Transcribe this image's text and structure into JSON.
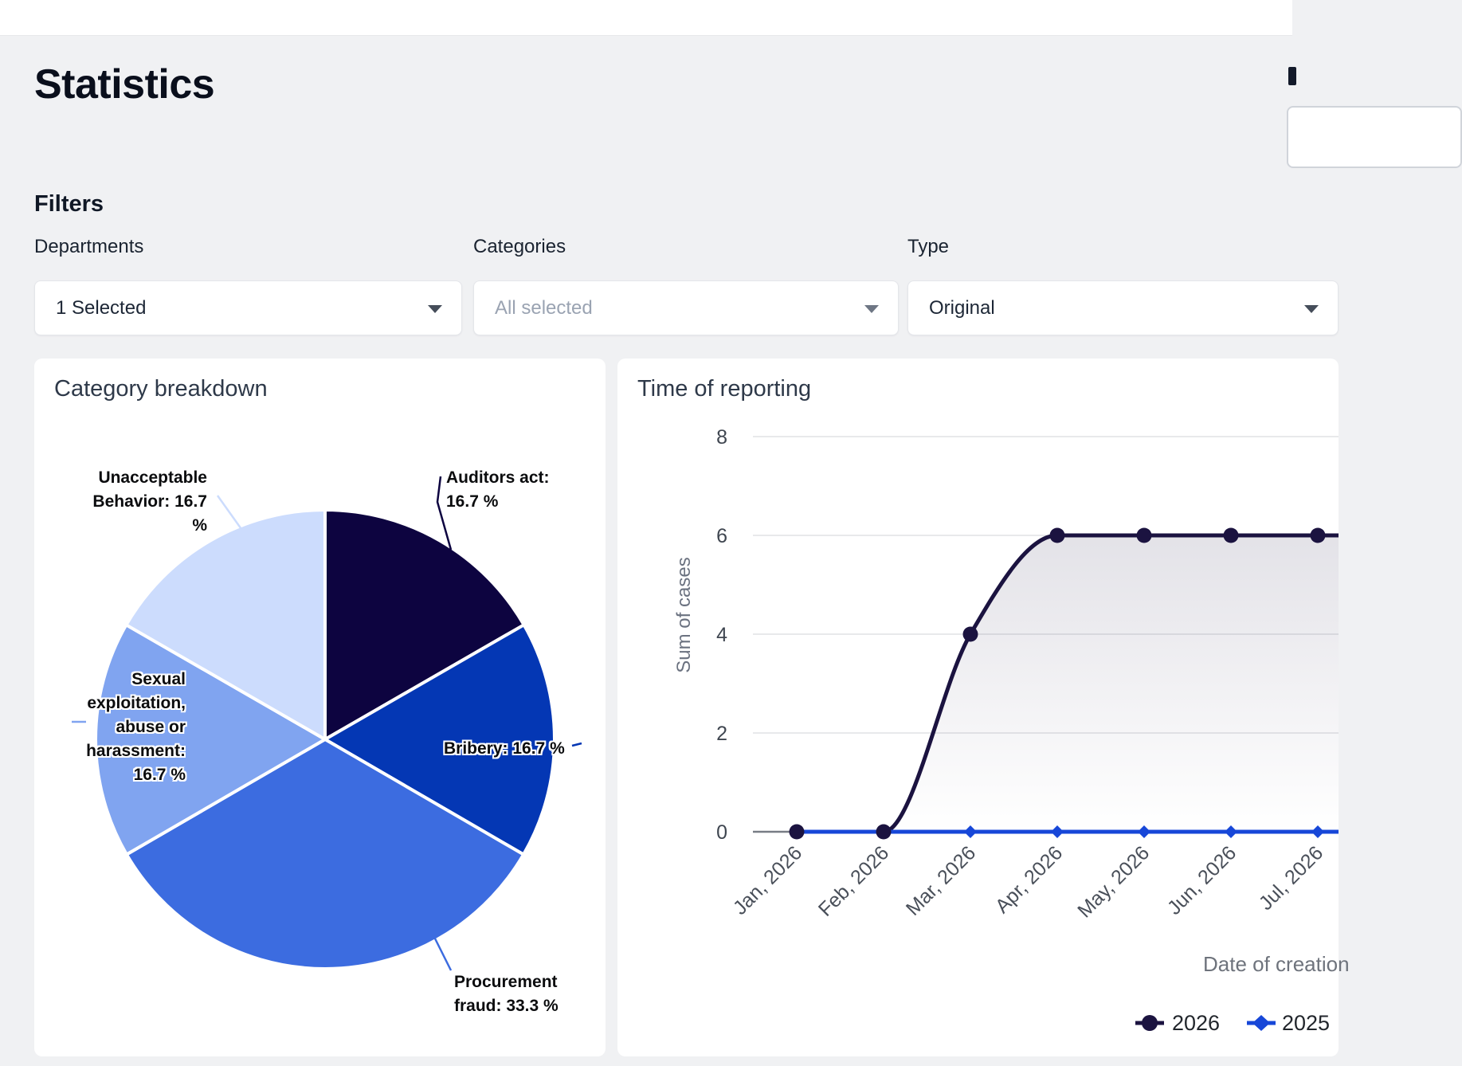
{
  "header": {
    "title": "Statistics"
  },
  "filters": {
    "heading": "Filters",
    "departments": {
      "label": "Departments",
      "value": "1 Selected"
    },
    "categories": {
      "label": "Categories",
      "value": "All selected"
    },
    "type": {
      "label": "Type",
      "value": "Original"
    }
  },
  "chart_data": [
    {
      "type": "pie",
      "title": "Category breakdown",
      "slices": [
        {
          "label": "Auditors act",
          "value": 16.7,
          "color": "#0D0440",
          "lines": [
            "Auditors act:",
            "16.7 %"
          ]
        },
        {
          "label": "Bribery",
          "value": 16.7,
          "color": "#0437B4",
          "lines": [
            "Bribery: 16.7 %"
          ]
        },
        {
          "label": "Procurement fraud",
          "value": 33.3,
          "color": "#3C6CE0",
          "lines": [
            "Procurement",
            "fraud: 33.3 %"
          ]
        },
        {
          "label": "Sexual exploitation, abuse or harassment",
          "value": 16.7,
          "color": "#80A4F0",
          "lines": [
            "Sexual",
            "exploitation,",
            "abuse or",
            "harassment:",
            "16.7 %"
          ]
        },
        {
          "label": "Unacceptable Behavior",
          "value": 16.7,
          "color": "#CCDCFD",
          "lines": [
            "Unacceptable",
            "Behavior: 16.7",
            "%"
          ]
        }
      ]
    },
    {
      "type": "line",
      "title": "Time of reporting",
      "x": [
        "Jan, 2026",
        "Feb, 2026",
        "Mar, 2026",
        "Apr, 2026",
        "May, 2026",
        "Jun, 2026",
        "Jul, 2026"
      ],
      "series": [
        {
          "name": "2026",
          "marker": "circle",
          "color": "#1B1340",
          "values": [
            0,
            0,
            4,
            6,
            6,
            6,
            6
          ]
        },
        {
          "name": "2025",
          "marker": "diamond",
          "color": "#1747D8",
          "values": [
            0,
            0,
            0,
            0,
            0,
            0,
            0
          ]
        }
      ],
      "ylabel": "Sum of cases",
      "xlabel": "Date of creation",
      "yticks": [
        0,
        2,
        4,
        6,
        8
      ],
      "ylim": [
        0,
        8
      ],
      "grid": true,
      "legend_position": "bottom"
    }
  ]
}
